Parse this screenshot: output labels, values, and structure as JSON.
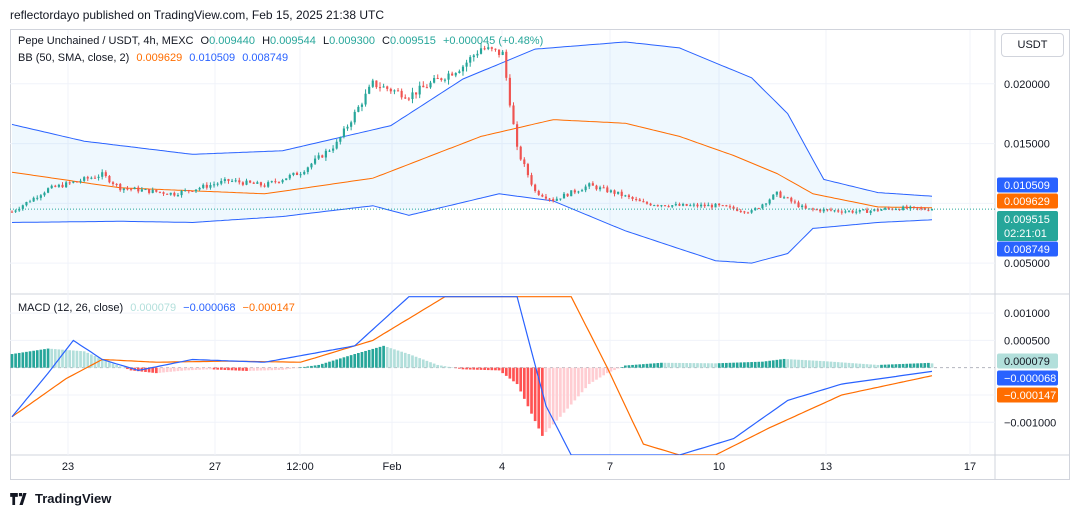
{
  "header": {
    "publisher_text": "reflectordayo published on TradingView.com, Feb 15, 2025 21:38 UTC"
  },
  "price_legend": {
    "symbol": "Pepe Unchained / USDT, 4h, MEXC",
    "o_label": "O",
    "o_value": "0.009440",
    "h_label": "H",
    "h_value": "0.009544",
    "l_label": "L",
    "l_value": "0.009300",
    "c_label": "C",
    "c_value": "0.009515",
    "change": "+0.000045 (+0.48%)"
  },
  "bb_legend": {
    "name": "BB (50, SMA, close, 2)",
    "basis": "0.009629",
    "upper": "0.010509",
    "lower": "0.008749"
  },
  "macd_legend": {
    "name": "MACD (12, 26, close)",
    "hist": "0.000079",
    "macd": "−0.000068",
    "signal": "−0.000147"
  },
  "currency_button": "USDT",
  "price_axis": {
    "ticks": [
      "0.020000",
      "0.015000",
      "0.005000"
    ],
    "tags": {
      "upper": "0.010509",
      "basis": "0.009629",
      "close": "0.009515",
      "countdown": "02:21:01",
      "lower": "0.008749"
    }
  },
  "macd_axis": {
    "ticks": [
      "0.001000",
      "0.000500",
      "−0.001000"
    ],
    "tags": {
      "hist": "0.000079",
      "macd": "−0.000068",
      "signal": "−0.000147"
    }
  },
  "time_axis": {
    "ticks": [
      "23",
      "27",
      "12:00",
      "Feb",
      "4",
      "7",
      "10",
      "13",
      "17"
    ]
  },
  "colors": {
    "up": "#26a69a",
    "down": "#ef5350",
    "bb_band": "#2962ff",
    "bb_basis": "#ff6d00",
    "hist_up_strong": "#26a69a",
    "hist_up_weak": "#b2dfdb",
    "hist_down_strong": "#ff5252",
    "hist_down_weak": "#ffcdd2",
    "macd_line": "#2962ff",
    "signal_line": "#ff6d00",
    "fill": "rgba(33,150,243,0.07)"
  },
  "footer": {
    "brand": "TradingView"
  },
  "chart_data": [
    {
      "type": "candlestick",
      "title": "Pepe Unchained / USDT, 4h, MEXC",
      "ylim": [
        0.0025,
        0.0245
      ],
      "x_ticks": [
        "23",
        "27",
        "12:00",
        "Feb",
        "4",
        "7",
        "10",
        "13",
        "17"
      ],
      "bb_upper_anchors": [
        [
          0,
          0.0166
        ],
        [
          20,
          0.0152
        ],
        [
          50,
          0.0141
        ],
        [
          75,
          0.0144
        ],
        [
          105,
          0.0165
        ],
        [
          125,
          0.0204
        ],
        [
          145,
          0.0229
        ],
        [
          170,
          0.0235
        ],
        [
          185,
          0.023
        ],
        [
          205,
          0.0205
        ],
        [
          215,
          0.0175
        ],
        [
          225,
          0.012
        ],
        [
          240,
          0.0109
        ],
        [
          260,
          0.0105
        ]
      ],
      "bb_basis_anchors": [
        [
          0,
          0.0126
        ],
        [
          30,
          0.0113
        ],
        [
          70,
          0.0108
        ],
        [
          100,
          0.0121
        ],
        [
          130,
          0.0156
        ],
        [
          150,
          0.017
        ],
        [
          170,
          0.0167
        ],
        [
          185,
          0.0156
        ],
        [
          200,
          0.014
        ],
        [
          212,
          0.0125
        ],
        [
          222,
          0.0108
        ],
        [
          240,
          0.0097
        ],
        [
          260,
          0.0096
        ]
      ],
      "bb_lower_anchors": [
        [
          0,
          0.0084
        ],
        [
          30,
          0.0085
        ],
        [
          50,
          0.0084
        ],
        [
          75,
          0.0089
        ],
        [
          100,
          0.0098
        ],
        [
          110,
          0.009
        ],
        [
          135,
          0.0108
        ],
        [
          150,
          0.0102
        ],
        [
          170,
          0.0077
        ],
        [
          195,
          0.0052
        ],
        [
          205,
          0.005
        ],
        [
          215,
          0.0058
        ],
        [
          222,
          0.0079
        ],
        [
          240,
          0.0084
        ],
        [
          260,
          0.0087
        ]
      ],
      "close_anchors": [
        [
          0,
          0.0093
        ],
        [
          10,
          0.0112
        ],
        [
          25,
          0.0124
        ],
        [
          30,
          0.0113
        ],
        [
          45,
          0.0108
        ],
        [
          60,
          0.0119
        ],
        [
          70,
          0.0115
        ],
        [
          80,
          0.0126
        ],
        [
          90,
          0.015
        ],
        [
          100,
          0.02
        ],
        [
          110,
          0.019
        ],
        [
          125,
          0.0215
        ],
        [
          130,
          0.023
        ],
        [
          136,
          0.0225
        ],
        [
          140,
          0.0145
        ],
        [
          145,
          0.011
        ],
        [
          150,
          0.0103
        ],
        [
          160,
          0.0115
        ],
        [
          168,
          0.0108
        ],
        [
          175,
          0.01
        ],
        [
          185,
          0.0098
        ],
        [
          195,
          0.0098
        ],
        [
          205,
          0.0093
        ],
        [
          212,
          0.0108
        ],
        [
          220,
          0.0095
        ],
        [
          235,
          0.0093
        ],
        [
          245,
          0.0096
        ],
        [
          255,
          0.0095
        ]
      ],
      "last_values": {
        "open": 0.00944,
        "high": 0.009544,
        "low": 0.0093,
        "close": 0.009515,
        "bb_basis": 0.009629,
        "bb_upper": 0.010509,
        "bb_lower": 0.008749
      }
    },
    {
      "type": "macd",
      "title": "MACD (12, 26, close)",
      "ylim": [
        -0.0016,
        0.00135
      ],
      "hist_anchors": [
        [
          0,
          0.00025
        ],
        [
          10,
          0.00035
        ],
        [
          20,
          0.0003
        ],
        [
          27,
          0.0001
        ],
        [
          33,
          -5e-05
        ],
        [
          40,
          -0.0001
        ],
        [
          48,
          -5e-05
        ],
        [
          55,
          -3e-05
        ],
        [
          65,
          -6e-05
        ],
        [
          75,
          -4e-05
        ],
        [
          85,
          5e-05
        ],
        [
          95,
          0.00025
        ],
        [
          103,
          0.0004
        ],
        [
          110,
          0.00025
        ],
        [
          118,
          5e-05
        ],
        [
          125,
          -3e-05
        ],
        [
          135,
          -5e-05
        ],
        [
          140,
          -0.0003
        ],
        [
          147,
          -0.00125
        ],
        [
          152,
          -0.0009
        ],
        [
          160,
          -0.0003
        ],
        [
          165,
          -0.0001
        ],
        [
          170,
          4e-05
        ],
        [
          180,
          9e-05
        ],
        [
          195,
          8e-05
        ],
        [
          208,
          0.00011
        ],
        [
          214,
          0.00016
        ],
        [
          225,
          0.00012
        ],
        [
          240,
          5e-05
        ],
        [
          255,
          9e-05
        ]
      ],
      "macd_anchors": [
        [
          0,
          -0.0009
        ],
        [
          10,
          -0.0001
        ],
        [
          17,
          0.0005
        ],
        [
          25,
          0.00015
        ],
        [
          35,
          -5e-05
        ],
        [
          50,
          0.00015
        ],
        [
          70,
          0.0001
        ],
        [
          95,
          0.0004
        ],
        [
          110,
          0.0013
        ],
        [
          140,
          0.0013
        ],
        [
          148,
          -0.0007
        ],
        [
          155,
          -0.0016
        ],
        [
          170,
          -0.0016
        ],
        [
          185,
          -0.0016
        ],
        [
          200,
          -0.0013
        ],
        [
          215,
          -0.0006
        ],
        [
          230,
          -0.0003
        ],
        [
          255,
          -6.8e-05
        ]
      ],
      "signal_anchors": [
        [
          0,
          -0.0009
        ],
        [
          15,
          -0.0002
        ],
        [
          25,
          0.00015
        ],
        [
          40,
          0.0001
        ],
        [
          60,
          0.00012
        ],
        [
          80,
          0.0001
        ],
        [
          100,
          0.0005
        ],
        [
          120,
          0.0013
        ],
        [
          155,
          0.0013
        ],
        [
          165,
          0.0
        ],
        [
          175,
          -0.0014
        ],
        [
          185,
          -0.0016
        ],
        [
          195,
          -0.0016
        ],
        [
          210,
          -0.0011
        ],
        [
          230,
          -0.0005
        ],
        [
          255,
          -0.000147
        ]
      ],
      "last_values": {
        "histogram": 7.9e-05,
        "macd": -6.8e-05,
        "signal": -0.000147
      }
    }
  ]
}
